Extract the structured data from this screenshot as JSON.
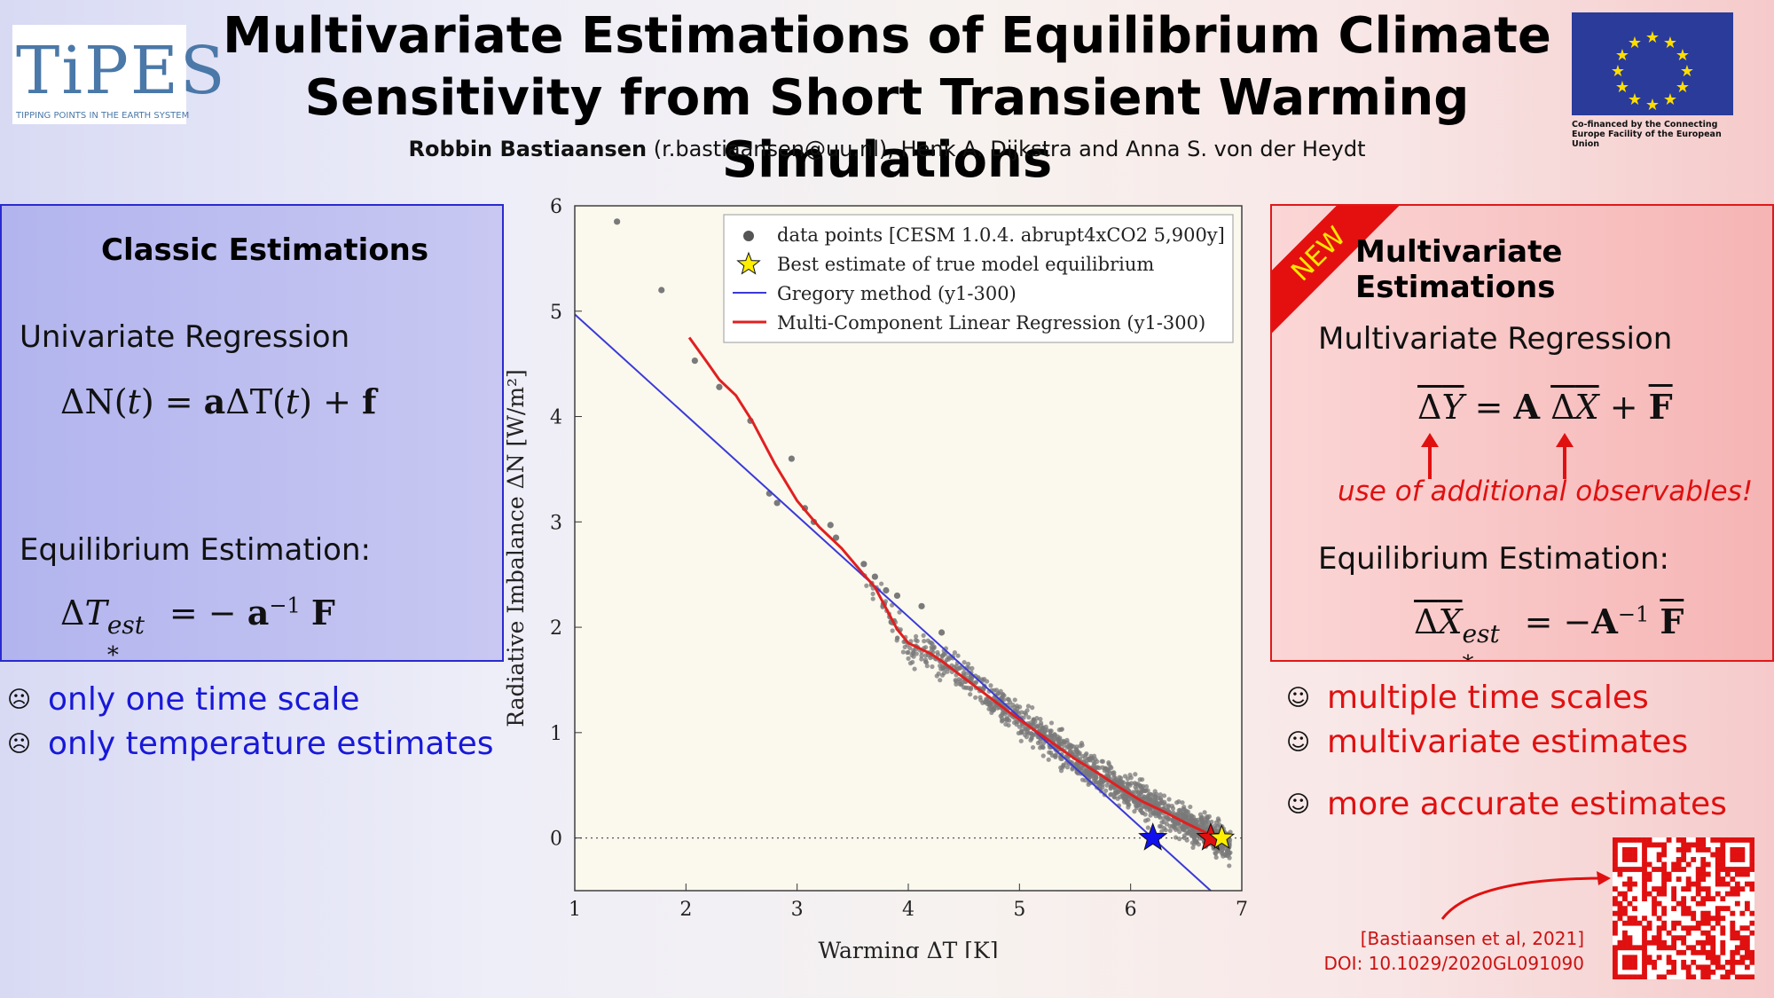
{
  "header": {
    "title_line1": "Multivariate Estimations of Equilibrium Climate",
    "title_line2": "Sensitivity from Short Transient Warming Simulations",
    "author_main": "Robbin Bastiaansen",
    "authors_rest": " (r.bastiaansen@uu.nl), Henk A. Dijkstra and Anna S. von der Heydt",
    "logo_left_text": "TiPES",
    "logo_left_tagline": "TIPPING POINTS IN THE EARTH SYSTEM",
    "eu_caption": "Co-financed by the Connecting Europe Facility of the European Union"
  },
  "left_panel": {
    "title": "Classic Estimations",
    "section1": "Univariate Regression",
    "equation1": "ΔN(t) = aΔT(t) + f",
    "section2": "Equilibrium Estimation:",
    "equation2": "ΔT*est = − a⁻¹ F",
    "bullets": [
      "only one time scale",
      "only temperature estimates"
    ],
    "bullet_icon": "frown-icon",
    "text_color": "#1818d8"
  },
  "right_panel": {
    "badge": "NEW",
    "title": "Multivariate Estimations",
    "section1": "Multivariate Regression",
    "equation1": "ΔY = A ΔX + F",
    "note": "use of additional observables!",
    "section2": "Equilibrium Estimation:",
    "equation2": "ΔX*est = −A⁻¹ F",
    "bullets": [
      "multiple time scales",
      "multivariate estimates",
      "more accurate estimates"
    ],
    "bullet_icon": "smile-icon",
    "text_color": "#e01010"
  },
  "citation": {
    "ref": "[Bastiaansen et al, 2021]",
    "doi": "DOI: 10.1029/2020GL091090"
  },
  "chart_data": {
    "type": "scatter",
    "xlabel": "Warming ΔT [K]",
    "ylabel": "Radiative Imbalance ΔN [W/m²]",
    "xlim": [
      1,
      7
    ],
    "ylim": [
      -0.5,
      6
    ],
    "xticks": [
      "1",
      "2",
      "3",
      "4",
      "5",
      "6",
      "7"
    ],
    "yticks": [
      "0",
      "1",
      "2",
      "3",
      "4",
      "5",
      "6"
    ],
    "legend_position": "top-right",
    "legend": [
      "data points [CESM 1.0.4. abrupt4xCO2 5,900y]",
      "Best estimate of true model equilibrium",
      "Gregory method (y1-300)",
      "Multi-Component Linear Regression (y1-300)"
    ],
    "series": [
      {
        "name": "data points [CESM 1.0.4. abrupt4xCO2 5,900y]",
        "kind": "scatter",
        "color": "#7a7a7a",
        "points": [
          [
            1.38,
            5.85
          ],
          [
            1.78,
            5.2
          ],
          [
            2.08,
            4.53
          ],
          [
            2.3,
            4.28
          ],
          [
            2.58,
            3.96
          ],
          [
            2.95,
            3.6
          ],
          [
            2.75,
            3.27
          ],
          [
            2.82,
            3.18
          ],
          [
            3.07,
            3.13
          ],
          [
            3.15,
            3.0
          ],
          [
            3.3,
            2.97
          ],
          [
            3.35,
            2.85
          ],
          [
            3.6,
            2.6
          ],
          [
            3.8,
            2.35
          ],
          [
            3.9,
            2.3
          ],
          [
            4.12,
            2.2
          ],
          [
            4.3,
            1.95
          ],
          [
            3.7,
            2.48
          ],
          [
            3.78,
            2.22
          ],
          [
            3.85,
            2.05
          ]
        ],
        "cloud": [
          {
            "x_from": 3.6,
            "x_to": 6.9,
            "trend": "MCLR",
            "spread": 0.22,
            "count": 1400
          }
        ]
      },
      {
        "name": "Gregory method (y1-300)",
        "kind": "line",
        "color": "#3a3ad8",
        "points": [
          [
            1.0,
            4.97
          ],
          [
            6.72,
            -0.5
          ]
        ]
      },
      {
        "name": "Multi-Component Linear Regression (y1-300)",
        "kind": "line",
        "color": "#e02020",
        "points": [
          [
            2.03,
            4.75
          ],
          [
            2.2,
            4.5
          ],
          [
            2.3,
            4.35
          ],
          [
            2.45,
            4.2
          ],
          [
            2.6,
            3.95
          ],
          [
            2.8,
            3.55
          ],
          [
            3.0,
            3.2
          ],
          [
            3.2,
            2.95
          ],
          [
            3.4,
            2.75
          ],
          [
            3.6,
            2.5
          ],
          [
            3.7,
            2.38
          ],
          [
            3.8,
            2.18
          ],
          [
            3.9,
            1.98
          ],
          [
            4.0,
            1.85
          ],
          [
            4.1,
            1.8
          ],
          [
            4.2,
            1.75
          ],
          [
            4.3,
            1.68
          ],
          [
            4.5,
            1.52
          ],
          [
            4.7,
            1.36
          ],
          [
            4.9,
            1.2
          ],
          [
            5.1,
            1.05
          ],
          [
            5.3,
            0.9
          ],
          [
            5.5,
            0.75
          ],
          [
            5.7,
            0.62
          ],
          [
            5.9,
            0.48
          ],
          [
            6.1,
            0.35
          ],
          [
            6.3,
            0.25
          ],
          [
            6.5,
            0.14
          ],
          [
            6.7,
            0.04
          ]
        ]
      },
      {
        "name": "Best estimate of true model equilibrium",
        "kind": "marker",
        "color": "#ffee00",
        "points": [
          [
            6.82,
            0.0
          ]
        ]
      },
      {
        "name": "",
        "kind": "marker",
        "color": "#1010ee",
        "points": [
          [
            6.2,
            0.0
          ]
        ]
      },
      {
        "name": "",
        "kind": "marker",
        "color": "#e01010",
        "points": [
          [
            6.72,
            0.0
          ]
        ]
      }
    ]
  }
}
